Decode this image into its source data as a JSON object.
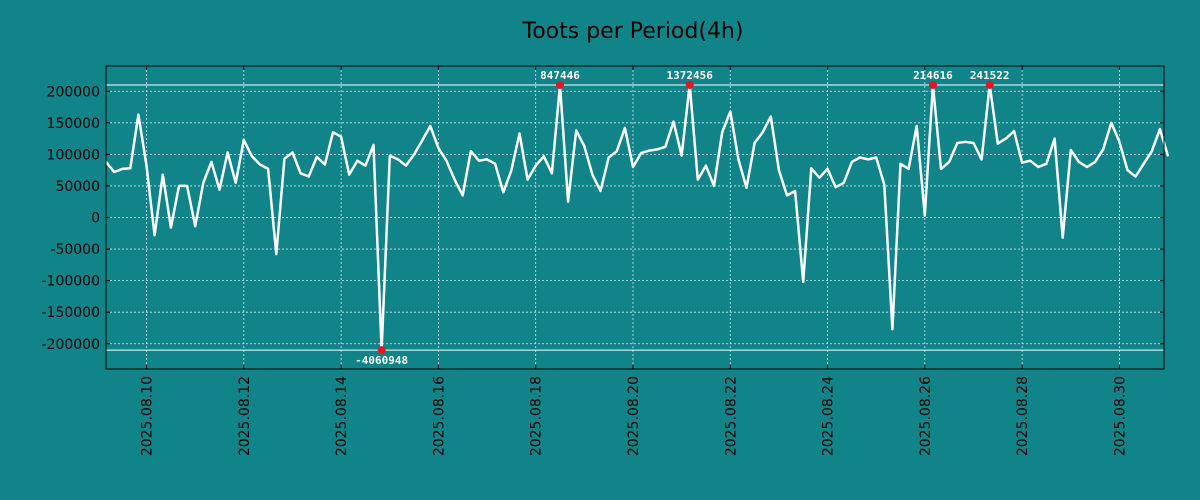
{
  "chart_data": {
    "type": "line",
    "title": "Toots per Period(4h)",
    "xlabel": "",
    "ylabel": "",
    "grid": true,
    "xlim": [
      "2025-08-09 04:00",
      "2025-08-30 22:00"
    ],
    "ylim": [
      -240000,
      240000
    ],
    "y_ticks": [
      -200000,
      -150000,
      -100000,
      -50000,
      0,
      50000,
      100000,
      150000,
      200000
    ],
    "y_tick_labels": [
      "-200000",
      "-150000",
      "-100000",
      "-50000",
      "0",
      "50000",
      "100000",
      "150000",
      "200000"
    ],
    "x_ticks": [
      "2025-08-10",
      "2025-08-12",
      "2025-08-14",
      "2025-08-16",
      "2025-08-18",
      "2025-08-20",
      "2025-08-22",
      "2025-08-24",
      "2025-08-26",
      "2025-08-28",
      "2025-08-30"
    ],
    "x_tick_labels": [
      "2025.08.10",
      "2025.08.12",
      "2025.08.14",
      "2025.08.16",
      "2025.08.18",
      "2025.08.20",
      "2025.08.22",
      "2025.08.24",
      "2025.08.26",
      "2025.08.28",
      "2025.08.30"
    ],
    "clip_lines": [
      210000,
      -210000
    ],
    "series": [
      {
        "color": "#ffffff",
        "points": [
          [
            "2025-08-09 04:00",
            88000
          ],
          [
            "2025-08-09 08:00",
            72000
          ],
          [
            "2025-08-09 12:00",
            77000
          ],
          [
            "2025-08-09 16:00",
            78000
          ],
          [
            "2025-08-09 20:00",
            163000
          ],
          [
            "2025-08-10 00:00",
            82000
          ],
          [
            "2025-08-10 04:00",
            -28000
          ],
          [
            "2025-08-10 08:00",
            68000
          ],
          [
            "2025-08-10 12:00",
            -16000
          ],
          [
            "2025-08-10 16:00",
            50000
          ],
          [
            "2025-08-10 20:00",
            50000
          ],
          [
            "2025-08-11 00:00",
            -14000
          ],
          [
            "2025-08-11 04:00",
            55000
          ],
          [
            "2025-08-11 08:00",
            88000
          ],
          [
            "2025-08-11 12:00",
            44000
          ],
          [
            "2025-08-11 16:00",
            103000
          ],
          [
            "2025-08-11 20:00",
            55000
          ],
          [
            "2025-08-12 00:00",
            123000
          ],
          [
            "2025-08-12 04:00",
            97000
          ],
          [
            "2025-08-12 08:00",
            84000
          ],
          [
            "2025-08-12 12:00",
            77000
          ],
          [
            "2025-08-12 16:00",
            -58000
          ],
          [
            "2025-08-12 20:00",
            93000
          ],
          [
            "2025-08-13 00:00",
            103000
          ],
          [
            "2025-08-13 04:00",
            70000
          ],
          [
            "2025-08-13 08:00",
            65000
          ],
          [
            "2025-08-13 12:00",
            96000
          ],
          [
            "2025-08-13 16:00",
            84000
          ],
          [
            "2025-08-13 20:00",
            135000
          ],
          [
            "2025-08-14 00:00",
            128000
          ],
          [
            "2025-08-14 04:00",
            68000
          ],
          [
            "2025-08-14 08:00",
            90000
          ],
          [
            "2025-08-14 12:00",
            82000
          ],
          [
            "2025-08-14 16:00",
            115000
          ],
          [
            "2025-08-14 20:00",
            -210000
          ],
          [
            "2025-08-15 00:00",
            98000
          ],
          [
            "2025-08-15 04:00",
            92000
          ],
          [
            "2025-08-15 08:00",
            82000
          ],
          [
            "2025-08-15 12:00",
            100000
          ],
          [
            "2025-08-15 16:00",
            122000
          ],
          [
            "2025-08-15 20:00",
            145000
          ],
          [
            "2025-08-16 00:00",
            110000
          ],
          [
            "2025-08-16 04:00",
            90000
          ],
          [
            "2025-08-16 08:00",
            60000
          ],
          [
            "2025-08-16 12:00",
            35000
          ],
          [
            "2025-08-16 16:00",
            105000
          ],
          [
            "2025-08-16 20:00",
            90000
          ],
          [
            "2025-08-17 00:00",
            92000
          ],
          [
            "2025-08-17 04:00",
            85000
          ],
          [
            "2025-08-17 08:00",
            40000
          ],
          [
            "2025-08-17 12:00",
            75000
          ],
          [
            "2025-08-17 16:00",
            133000
          ],
          [
            "2025-08-17 20:00",
            60000
          ],
          [
            "2025-08-18 00:00",
            82000
          ],
          [
            "2025-08-18 04:00",
            97000
          ],
          [
            "2025-08-18 08:00",
            70000
          ],
          [
            "2025-08-18 12:00",
            210000
          ],
          [
            "2025-08-18 16:00",
            25000
          ],
          [
            "2025-08-18 20:00",
            138000
          ],
          [
            "2025-08-19 00:00",
            113000
          ],
          [
            "2025-08-19 04:00",
            68000
          ],
          [
            "2025-08-19 08:00",
            42000
          ],
          [
            "2025-08-19 12:00",
            95000
          ],
          [
            "2025-08-19 16:00",
            105000
          ],
          [
            "2025-08-19 20:00",
            142000
          ],
          [
            "2025-08-20 00:00",
            80000
          ],
          [
            "2025-08-20 04:00",
            102000
          ],
          [
            "2025-08-20 08:00",
            106000
          ],
          [
            "2025-08-20 12:00",
            108000
          ],
          [
            "2025-08-20 16:00",
            112000
          ],
          [
            "2025-08-20 20:00",
            152000
          ],
          [
            "2025-08-21 00:00",
            98000
          ],
          [
            "2025-08-21 04:00",
            210000
          ],
          [
            "2025-08-21 08:00",
            60000
          ],
          [
            "2025-08-21 12:00",
            82000
          ],
          [
            "2025-08-21 16:00",
            50000
          ],
          [
            "2025-08-21 20:00",
            135000
          ],
          [
            "2025-08-22 00:00",
            168000
          ],
          [
            "2025-08-22 04:00",
            92000
          ],
          [
            "2025-08-22 08:00",
            47000
          ],
          [
            "2025-08-22 12:00",
            118000
          ],
          [
            "2025-08-22 16:00",
            135000
          ],
          [
            "2025-08-22 20:00",
            160000
          ],
          [
            "2025-08-23 00:00",
            75000
          ],
          [
            "2025-08-23 04:00",
            35000
          ],
          [
            "2025-08-23 08:00",
            42000
          ],
          [
            "2025-08-23 12:00",
            -102000
          ],
          [
            "2025-08-23 16:00",
            78000
          ],
          [
            "2025-08-23 20:00",
            63000
          ],
          [
            "2025-08-24 00:00",
            77000
          ],
          [
            "2025-08-24 04:00",
            48000
          ],
          [
            "2025-08-24 08:00",
            55000
          ],
          [
            "2025-08-24 12:00",
            88000
          ],
          [
            "2025-08-24 16:00",
            95000
          ],
          [
            "2025-08-24 20:00",
            92000
          ],
          [
            "2025-08-25 00:00",
            95000
          ],
          [
            "2025-08-25 04:00",
            52000
          ],
          [
            "2025-08-25 08:00",
            -177000
          ],
          [
            "2025-08-25 12:00",
            85000
          ],
          [
            "2025-08-25 16:00",
            77000
          ],
          [
            "2025-08-25 20:00",
            145000
          ],
          [
            "2025-08-26 00:00",
            3000
          ],
          [
            "2025-08-26 04:00",
            210000
          ],
          [
            "2025-08-26 08:00",
            77000
          ],
          [
            "2025-08-26 12:00",
            88000
          ],
          [
            "2025-08-26 16:00",
            118000
          ],
          [
            "2025-08-26 20:00",
            120000
          ],
          [
            "2025-08-27 00:00",
            118000
          ],
          [
            "2025-08-27 04:00",
            92000
          ],
          [
            "2025-08-27 08:00",
            210000
          ],
          [
            "2025-08-27 12:00",
            117000
          ],
          [
            "2025-08-27 16:00",
            125000
          ],
          [
            "2025-08-27 20:00",
            137000
          ],
          [
            "2025-08-28 00:00",
            87000
          ],
          [
            "2025-08-28 04:00",
            90000
          ],
          [
            "2025-08-28 08:00",
            80000
          ],
          [
            "2025-08-28 12:00",
            85000
          ],
          [
            "2025-08-28 16:00",
            125000
          ],
          [
            "2025-08-28 20:00",
            -32000
          ],
          [
            "2025-08-29 00:00",
            107000
          ],
          [
            "2025-08-29 04:00",
            88000
          ],
          [
            "2025-08-29 08:00",
            80000
          ],
          [
            "2025-08-29 12:00",
            88000
          ],
          [
            "2025-08-29 16:00",
            108000
          ],
          [
            "2025-08-29 20:00",
            150000
          ],
          [
            "2025-08-30 00:00",
            120000
          ],
          [
            "2025-08-30 04:00",
            75000
          ],
          [
            "2025-08-30 08:00",
            65000
          ],
          [
            "2025-08-30 12:00",
            85000
          ],
          [
            "2025-08-30 16:00",
            105000
          ],
          [
            "2025-08-30 20:00",
            140000
          ],
          [
            "2025-08-31 00:00",
            97000
          ]
        ]
      }
    ],
    "annotations": [
      {
        "x": "2025-08-14 20:00",
        "y": -210000,
        "label": "-4060948",
        "position": "below",
        "marker_color": "#e8141e"
      },
      {
        "x": "2025-08-18 12:00",
        "y": 210000,
        "label": "847446",
        "position": "above",
        "marker_color": "#e8141e"
      },
      {
        "x": "2025-08-21 04:00",
        "y": 210000,
        "label": "1372456",
        "position": "above",
        "marker_color": "#e8141e"
      },
      {
        "x": "2025-08-26 04:00",
        "y": 210000,
        "label": "214616",
        "position": "above",
        "marker_color": "#e8141e"
      },
      {
        "x": "2025-08-27 08:00",
        "y": 210000,
        "label": "241522",
        "position": "above",
        "marker_color": "#e8141e"
      }
    ],
    "colors": {
      "background": "#108488",
      "plot_area": "#108488",
      "line": "#ffffff",
      "marker": "#e8141e",
      "axes": "#000000",
      "grid": "#cfe5e6"
    }
  }
}
